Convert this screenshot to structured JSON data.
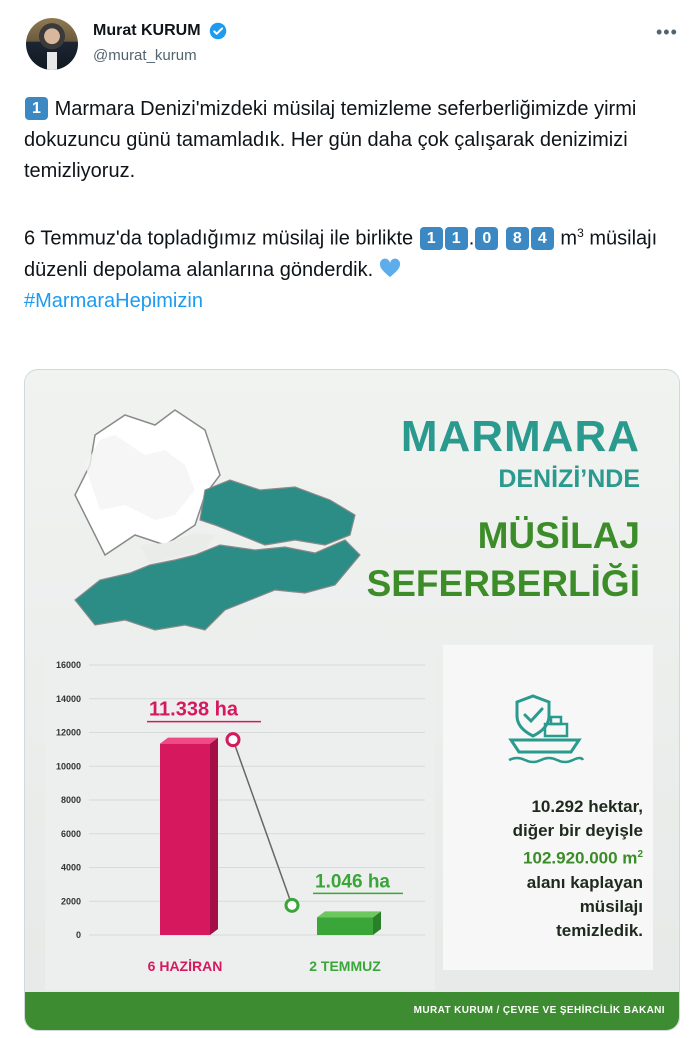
{
  "author": {
    "name": "Murat KURUM",
    "handle": "@murat_kurum"
  },
  "tweet": {
    "p1_keycap": "1",
    "p1_text": "Marmara Denizi'mizdeki müsilaj temizleme seferberliğimizde yirmi dokuzuncu günü tamamladık. Her gün daha çok çalışarak denizimizi temizliyoruz.",
    "p2_text_before": "6 Temmuz'da topladığımız müsilaj ile birlikte",
    "p2_keycap_1": "1",
    "p2_keycap_2": "1",
    "p2_dot": ".",
    "p2_keycap_3": "0",
    "p2_keycap_4": "8",
    "p2_keycap_5": "4",
    "p2_unit": "m",
    "p2_unit_sup": "3",
    "p2_text_after": "müsilajı düzenli depolama alanlarına gönderdik.",
    "hashtag": "#MarmaraHepimizin"
  },
  "infographic": {
    "title_line1": "MARMARA",
    "title_line2": "DENİZİ’NDE",
    "title_line3": "MÜSİLAJ",
    "title_line4": "SEFERBERLİĞİ",
    "stat_line1": "10.292 hektar,",
    "stat_line2": "diğer bir deyişle",
    "stat_line3": "102.920.000 m",
    "stat_line3_sup": "2",
    "stat_line4": "alanı kaplayan",
    "stat_line5": "müsilajı",
    "stat_line6": "temizledik.",
    "footer": "MURAT KURUM / ÇEVRE VE ŞEHİRCİLİK BAKANI"
  },
  "chart_data": {
    "type": "bar",
    "categories": [
      "6 HAZİRAN",
      "2 TEMMUZ"
    ],
    "values": [
      11338,
      1046
    ],
    "value_labels": [
      "11.338 ha",
      "1.046 ha"
    ],
    "yticks": [
      0,
      2000,
      4000,
      6000,
      8000,
      10000,
      12000,
      14000,
      16000
    ],
    "ylim": [
      0,
      16000
    ],
    "colors": [
      "#d6185f",
      "#3aa63a"
    ],
    "title": "",
    "xlabel": "",
    "ylabel": ""
  },
  "colors": {
    "teal": "#2a9a8e",
    "green": "#3d8c2a",
    "hashtag": "#1d9bf0",
    "keycap": "#3b88c3"
  }
}
